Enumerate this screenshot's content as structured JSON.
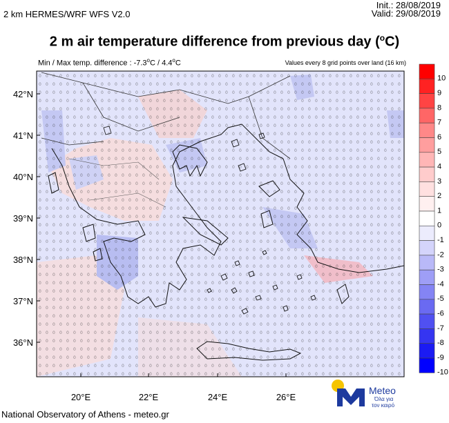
{
  "header": {
    "model": "2 km HERMES/WRF WFS V2.0",
    "init": "Init.:  28/08/2019",
    "valid": "Valid: 29/08/2019",
    "title": "2 m air temperature difference from previous day (",
    "title_unit": "C)",
    "minmax": "Min / Max temp. difference : -7.3",
    "minmax_mid": "C / 4.4",
    "minmax_end": "C",
    "values_note": "Values every 8 grid points over land (16 km)"
  },
  "map": {
    "lat_labels": [
      "42°N",
      "41°N",
      "40°N",
      "39°N",
      "38°N",
      "37°N",
      "36°N"
    ],
    "lon_labels": [
      "20°E",
      "22°E",
      "24°E",
      "26°E"
    ],
    "colors": {
      "ocean": "#e2e4fb",
      "warm": "#f7dcdc",
      "cool": "#c4c8f3",
      "coast": "#111111",
      "border": "#333333"
    }
  },
  "colorbar": {
    "labels": [
      "10",
      "9",
      "8",
      "7",
      "6",
      "5",
      "4",
      "3",
      "2",
      "1",
      "0",
      "-1",
      "-2",
      "-3",
      "-4",
      "-5",
      "-6",
      "-7",
      "-8",
      "-9",
      "-10"
    ],
    "colors": [
      "#ff0000",
      "#ff2222",
      "#ff4444",
      "#ff6666",
      "#ff8888",
      "#ff9e9e",
      "#ffb6b6",
      "#ffcccc",
      "#ffe0e0",
      "#fff0f0",
      "#ffffff",
      "#ececfd",
      "#d4d4fb",
      "#b9b9f8",
      "#9e9ef6",
      "#8484f4",
      "#6a6af2",
      "#5050f1",
      "#3535f1",
      "#1b1bf3",
      "#0000ff"
    ]
  },
  "logo": {
    "brand": "Meteo",
    "tagline_1": "Όλα για",
    "tagline_2": "τον καιρό"
  },
  "footer": "National Observatory of Athens - meteo.gr"
}
